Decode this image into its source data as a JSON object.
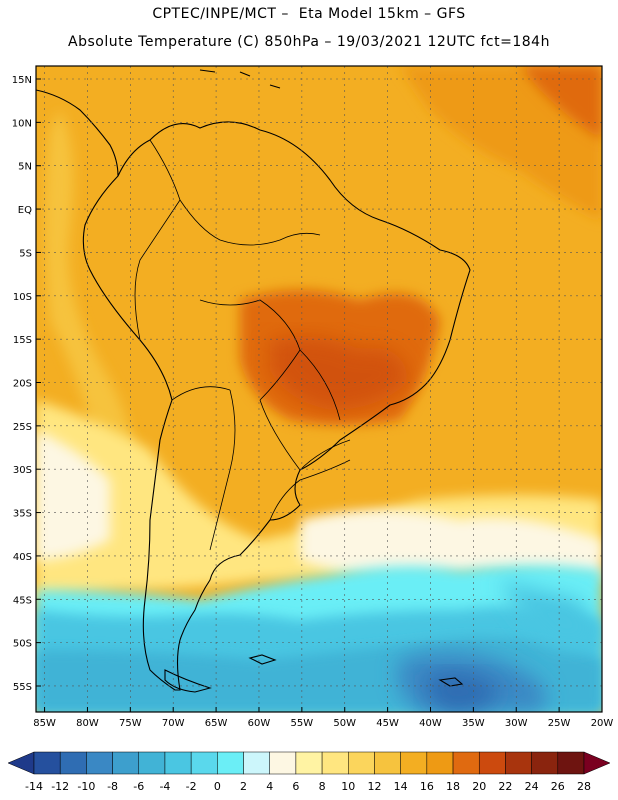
{
  "header": {
    "line1": "CPTEC/INPE/MCT –  Eta Model 15km – GFS",
    "line2": "Absolute Temperature (C) 850hPa – 19/03/2021 12UTC fct=184h"
  },
  "map": {
    "lat_labels": [
      "15N",
      "10N",
      "5N",
      "EQ",
      "5S",
      "10S",
      "15S",
      "20S",
      "25S",
      "30S",
      "35S",
      "40S",
      "45S",
      "50S",
      "55S"
    ],
    "lat_values": [
      15,
      10,
      5,
      0,
      -5,
      -10,
      -15,
      -20,
      -25,
      -30,
      -35,
      -40,
      -45,
      -50,
      -55
    ],
    "lon_labels": [
      "85W",
      "80W",
      "75W",
      "70W",
      "65W",
      "60W",
      "55W",
      "50W",
      "45W",
      "40W",
      "35W",
      "30W",
      "25W",
      "20W"
    ],
    "lon_values": [
      -85,
      -80,
      -75,
      -70,
      -65,
      -60,
      -55,
      -50,
      -45,
      -40,
      -35,
      -30,
      -25,
      -20
    ],
    "lat_range": [
      -58,
      16.5
    ],
    "lon_range": [
      -86,
      -20
    ]
  },
  "colorbar": {
    "labels": [
      "-14",
      "-12",
      "-10",
      "-8",
      "-6",
      "-4",
      "-2",
      "0",
      "2",
      "4",
      "6",
      "8",
      "10",
      "12",
      "14",
      "16",
      "18",
      "20",
      "22",
      "24",
      "26",
      "28"
    ],
    "colors": [
      "#1f3a8a",
      "#25509e",
      "#2f6db3",
      "#3a88c4",
      "#3d9fcd",
      "#41b3d6",
      "#4ac6e2",
      "#5ad8ec",
      "#6beef6",
      "#ccf6fb",
      "#fdf7e3",
      "#fff3a3",
      "#ffe680",
      "#fbd55c",
      "#f6c33e",
      "#f3ae22",
      "#ee9a14",
      "#e06a10",
      "#cc4a0e",
      "#a8340d",
      "#8a240e",
      "#6e1410",
      "#7a0020"
    ]
  },
  "colors": {
    "ocean_cold": "#4ab9dc",
    "warm_land": "#f2a01a",
    "hot_core": "#dd6512",
    "boundary": "#000000"
  }
}
